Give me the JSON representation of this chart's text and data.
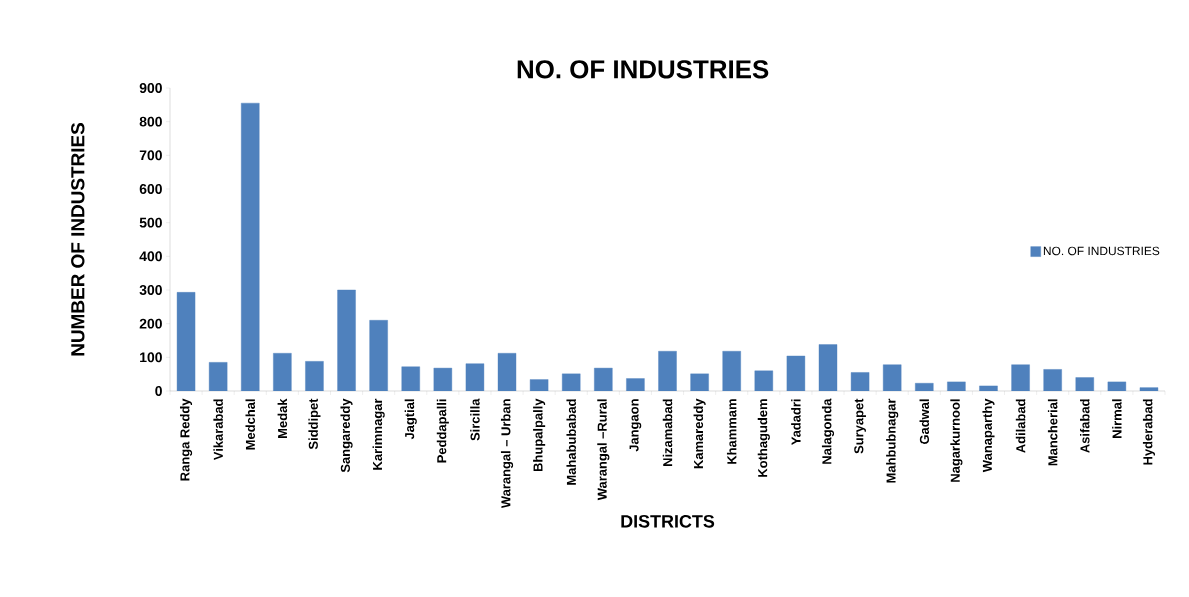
{
  "chart_data": {
    "type": "bar",
    "title": "NO. OF INDUSTRIES",
    "xlabel": "DISTRICTS",
    "ylabel": "NUMBER OF INDUSTRIES",
    "categories": [
      "Ranga Reddy",
      "Vikarabad",
      "Medchal",
      "Medak",
      "Siddipet",
      "Sangareddy",
      "Karimnagar",
      "Jagtial",
      "Peddapalli",
      "Sircilla",
      "Warangal – Urban",
      "Bhupalpally",
      "Mahabubabad",
      "Warangal –Rural",
      "Jangaon",
      "Nizamabad",
      "Kamareddy",
      "Khammam",
      "Kothagudem",
      "Yadadri",
      "Nalagonda",
      "Suryapet",
      "Mahbubnagar",
      "Gadwal",
      "Nagarkurnool",
      "Wanaparthy",
      "Adilabad",
      "Mancherial",
      "Asifabad",
      "Nirmal",
      "Hyderabad"
    ],
    "series": [
      {
        "name": "NO. OF INDUSTRIES",
        "color": "#4f81bd",
        "values": [
          293,
          85,
          855,
          112,
          88,
          300,
          210,
          72,
          68,
          81,
          112,
          34,
          51,
          68,
          37,
          118,
          51,
          118,
          60,
          104,
          138,
          55,
          78,
          23,
          27,
          15,
          78,
          64,
          40,
          27,
          10
        ]
      }
    ],
    "ylim": [
      0,
      900
    ],
    "yticks": [
      0,
      100,
      200,
      300,
      400,
      500,
      600,
      700,
      800,
      900
    ],
    "grid": false,
    "legend": "right"
  }
}
